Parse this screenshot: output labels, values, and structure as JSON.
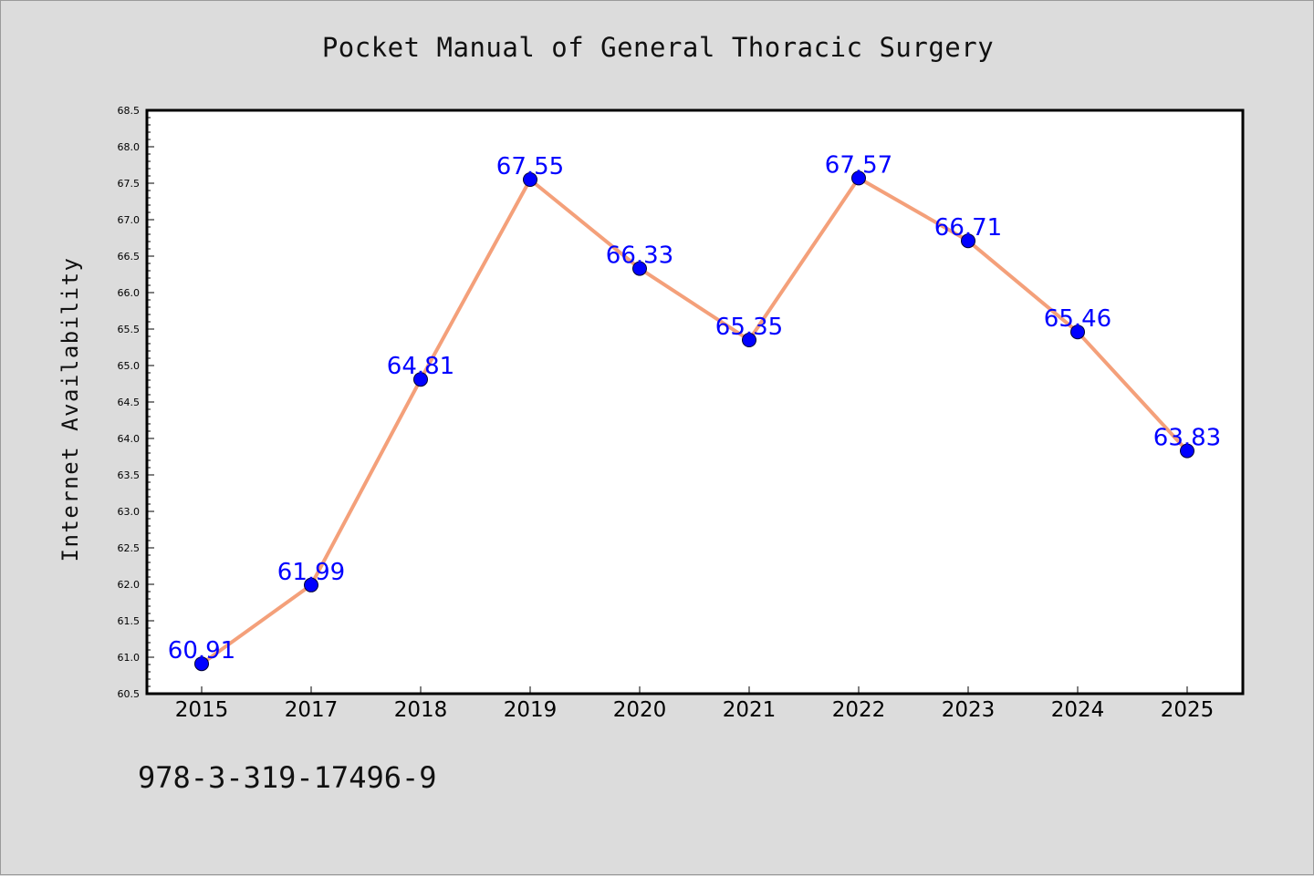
{
  "title": "Pocket Manual of General Thoracic Surgery",
  "isbn": "978-3-319-17496-9",
  "colors": {
    "line": "#f4a07a",
    "marker": "#0000ff",
    "label": "#0000ff",
    "background": "#dcdcdc",
    "plot_area": "#ffffff"
  },
  "chart_data": {
    "type": "line",
    "title": "Pocket Manual of General Thoracic Surgery",
    "xlabel": "",
    "ylabel": "Internet Availability",
    "categories": [
      "2015",
      "2017",
      "2018",
      "2019",
      "2020",
      "2021",
      "2022",
      "2023",
      "2024",
      "2025"
    ],
    "series": [
      {
        "values": [
          60.91,
          61.99,
          64.81,
          67.55,
          66.33,
          65.35,
          67.57,
          66.71,
          65.46,
          63.83
        ],
        "labels": [
          "60.91",
          "61.99",
          "64.81",
          "67.55",
          "66.33",
          "65.35",
          "67.57",
          "66.71",
          "65.46",
          "63.83"
        ]
      }
    ],
    "ylim": [
      60.5,
      68.5
    ],
    "yticks": [
      "60.5",
      "61.0",
      "61.5",
      "62.0",
      "62.5",
      "63.0",
      "63.5",
      "64.0",
      "64.5",
      "65.0",
      "65.5",
      "66.0",
      "66.5",
      "67.0",
      "67.5",
      "68.0",
      "68.5"
    ],
    "grid": false,
    "legend": "none"
  }
}
